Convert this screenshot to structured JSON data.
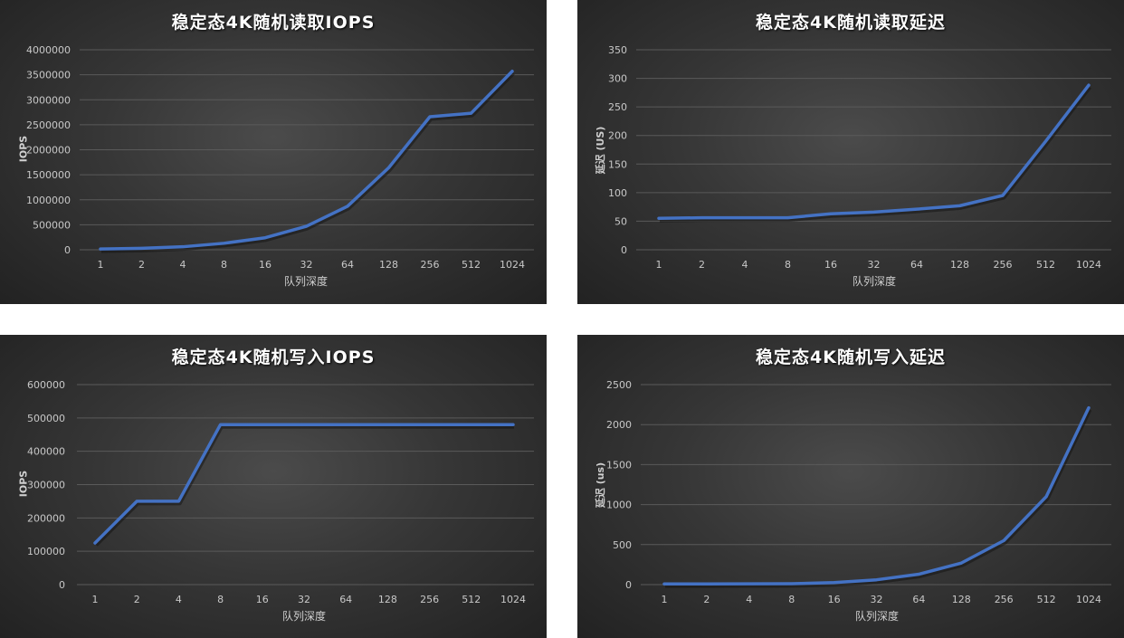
{
  "chart_data": [
    {
      "type": "line",
      "title": "稳定态4K随机读取IOPS",
      "xlabel": "队列深度",
      "ylabel": "IOPS",
      "categories": [
        "1",
        "2",
        "4",
        "8",
        "16",
        "32",
        "64",
        "128",
        "256",
        "512",
        "1024"
      ],
      "values": [
        15000,
        30000,
        60000,
        130000,
        240000,
        470000,
        870000,
        1640000,
        2660000,
        2730000,
        3570000
      ],
      "ylim": [
        0,
        4000000
      ],
      "yticks": [
        "0",
        "500000",
        "1000000",
        "1500000",
        "2000000",
        "2500000",
        "3000000",
        "3500000",
        "4000000"
      ],
      "grid": true,
      "color": "#4472c4"
    },
    {
      "type": "line",
      "title": "稳定态4K随机读取延迟",
      "xlabel": "队列深度",
      "ylabel": "延迟 (US)",
      "categories": [
        "1",
        "2",
        "4",
        "8",
        "16",
        "32",
        "64",
        "128",
        "256",
        "512",
        "1024"
      ],
      "values": [
        55,
        56,
        56,
        56,
        63,
        66,
        71,
        77,
        95,
        190,
        288
      ],
      "ylim": [
        0,
        350
      ],
      "yticks": [
        "0",
        "50",
        "100",
        "150",
        "200",
        "250",
        "300",
        "350"
      ],
      "grid": true,
      "color": "#4472c4"
    },
    {
      "type": "line",
      "title": "稳定态4K随机写入IOPS",
      "xlabel": "队列深度",
      "ylabel": "IOPS",
      "categories": [
        "1",
        "2",
        "4",
        "8",
        "16",
        "32",
        "64",
        "128",
        "256",
        "512",
        "1024"
      ],
      "values": [
        125000,
        250000,
        250000,
        480000,
        480000,
        480000,
        480000,
        480000,
        480000,
        480000,
        480000
      ],
      "ylim": [
        0,
        600000
      ],
      "yticks": [
        "0",
        "100000",
        "200000",
        "300000",
        "400000",
        "500000",
        "600000"
      ],
      "grid": true,
      "color": "#4472c4"
    },
    {
      "type": "line",
      "title": "稳定态4K随机写入延迟",
      "xlabel": "队列深度",
      "ylabel": "延迟 (us)",
      "categories": [
        "1",
        "2",
        "4",
        "8",
        "16",
        "32",
        "64",
        "128",
        "256",
        "512",
        "1024"
      ],
      "values": [
        8,
        8,
        10,
        12,
        25,
        60,
        130,
        270,
        550,
        1100,
        2210
      ],
      "ylim": [
        0,
        2500
      ],
      "yticks": [
        "0",
        "500",
        "1000",
        "1500",
        "2000",
        "2500"
      ],
      "grid": true,
      "color": "#4472c4"
    }
  ]
}
